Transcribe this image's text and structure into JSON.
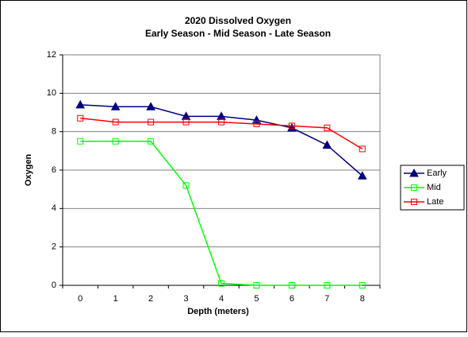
{
  "chart_data": {
    "type": "line",
    "title": "2020  Dissolved Oxygen",
    "subtitle": "Early Season - Mid Season - Late Season",
    "x_label": "Depth (meters)",
    "y_label": "Oxygen",
    "categories": [
      "0",
      "1",
      "2",
      "3",
      "4",
      "5",
      "6",
      "7",
      "8"
    ],
    "series": [
      {
        "name": "Early",
        "color": "#000080",
        "marker": "triangle",
        "values": [
          9.4,
          9.3,
          9.3,
          8.8,
          8.8,
          8.6,
          8.2,
          7.3,
          5.7
        ]
      },
      {
        "name": "Mid",
        "color": "#00ff00",
        "marker": "square",
        "values": [
          7.5,
          7.5,
          7.5,
          5.2,
          0.1,
          0,
          0,
          0,
          0
        ]
      },
      {
        "name": "Late",
        "color": "#ff0000",
        "marker": "square",
        "values": [
          8.7,
          8.5,
          8.5,
          8.5,
          8.5,
          8.4,
          8.3,
          8.2,
          7.1
        ]
      }
    ],
    "ylim": [
      0,
      12
    ],
    "yticks": [
      0,
      2,
      4,
      6,
      8,
      10,
      12
    ],
    "grid": true,
    "legend": "right"
  }
}
